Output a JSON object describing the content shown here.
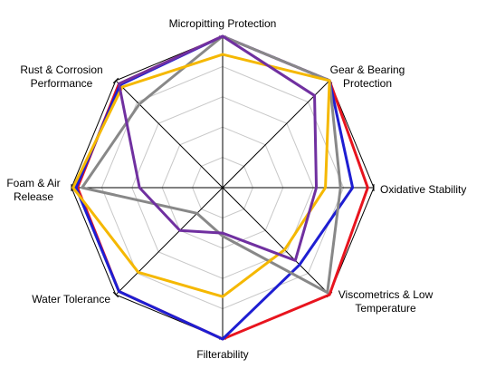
{
  "chart_data": {
    "type": "radar",
    "title": "",
    "axes": [
      "Micropitting Protection",
      "Gear & Bearing Protection",
      "Oxidative Stability",
      "Viscometrics & Low Temperature",
      "Filterability",
      "Water Tolerance",
      "Foam & Air Release",
      "Rust & Corrosion Performance"
    ],
    "range": [
      0,
      5
    ],
    "grid_levels": 5,
    "grid": true,
    "legend": "none",
    "series": [
      {
        "color": "#E8141E",
        "values": [
          5.0,
          5.0,
          4.8,
          5.0,
          5.0,
          4.85,
          4.8,
          4.85
        ]
      },
      {
        "color": "#1E1ED2",
        "values": [
          5.0,
          5.0,
          4.3,
          3.6,
          5.0,
          4.85,
          4.85,
          4.8
        ]
      },
      {
        "color": "#888888",
        "values": [
          5.0,
          5.0,
          3.9,
          4.9,
          1.6,
          1.2,
          4.65,
          3.9
        ]
      },
      {
        "color": "#F5B800",
        "values": [
          4.4,
          5.0,
          3.4,
          2.9,
          3.6,
          3.95,
          4.95,
          4.7
        ]
      },
      {
        "color": "#7030A0",
        "values": [
          5.0,
          4.3,
          3.1,
          3.4,
          1.5,
          2.0,
          2.75,
          4.85
        ]
      }
    ]
  }
}
